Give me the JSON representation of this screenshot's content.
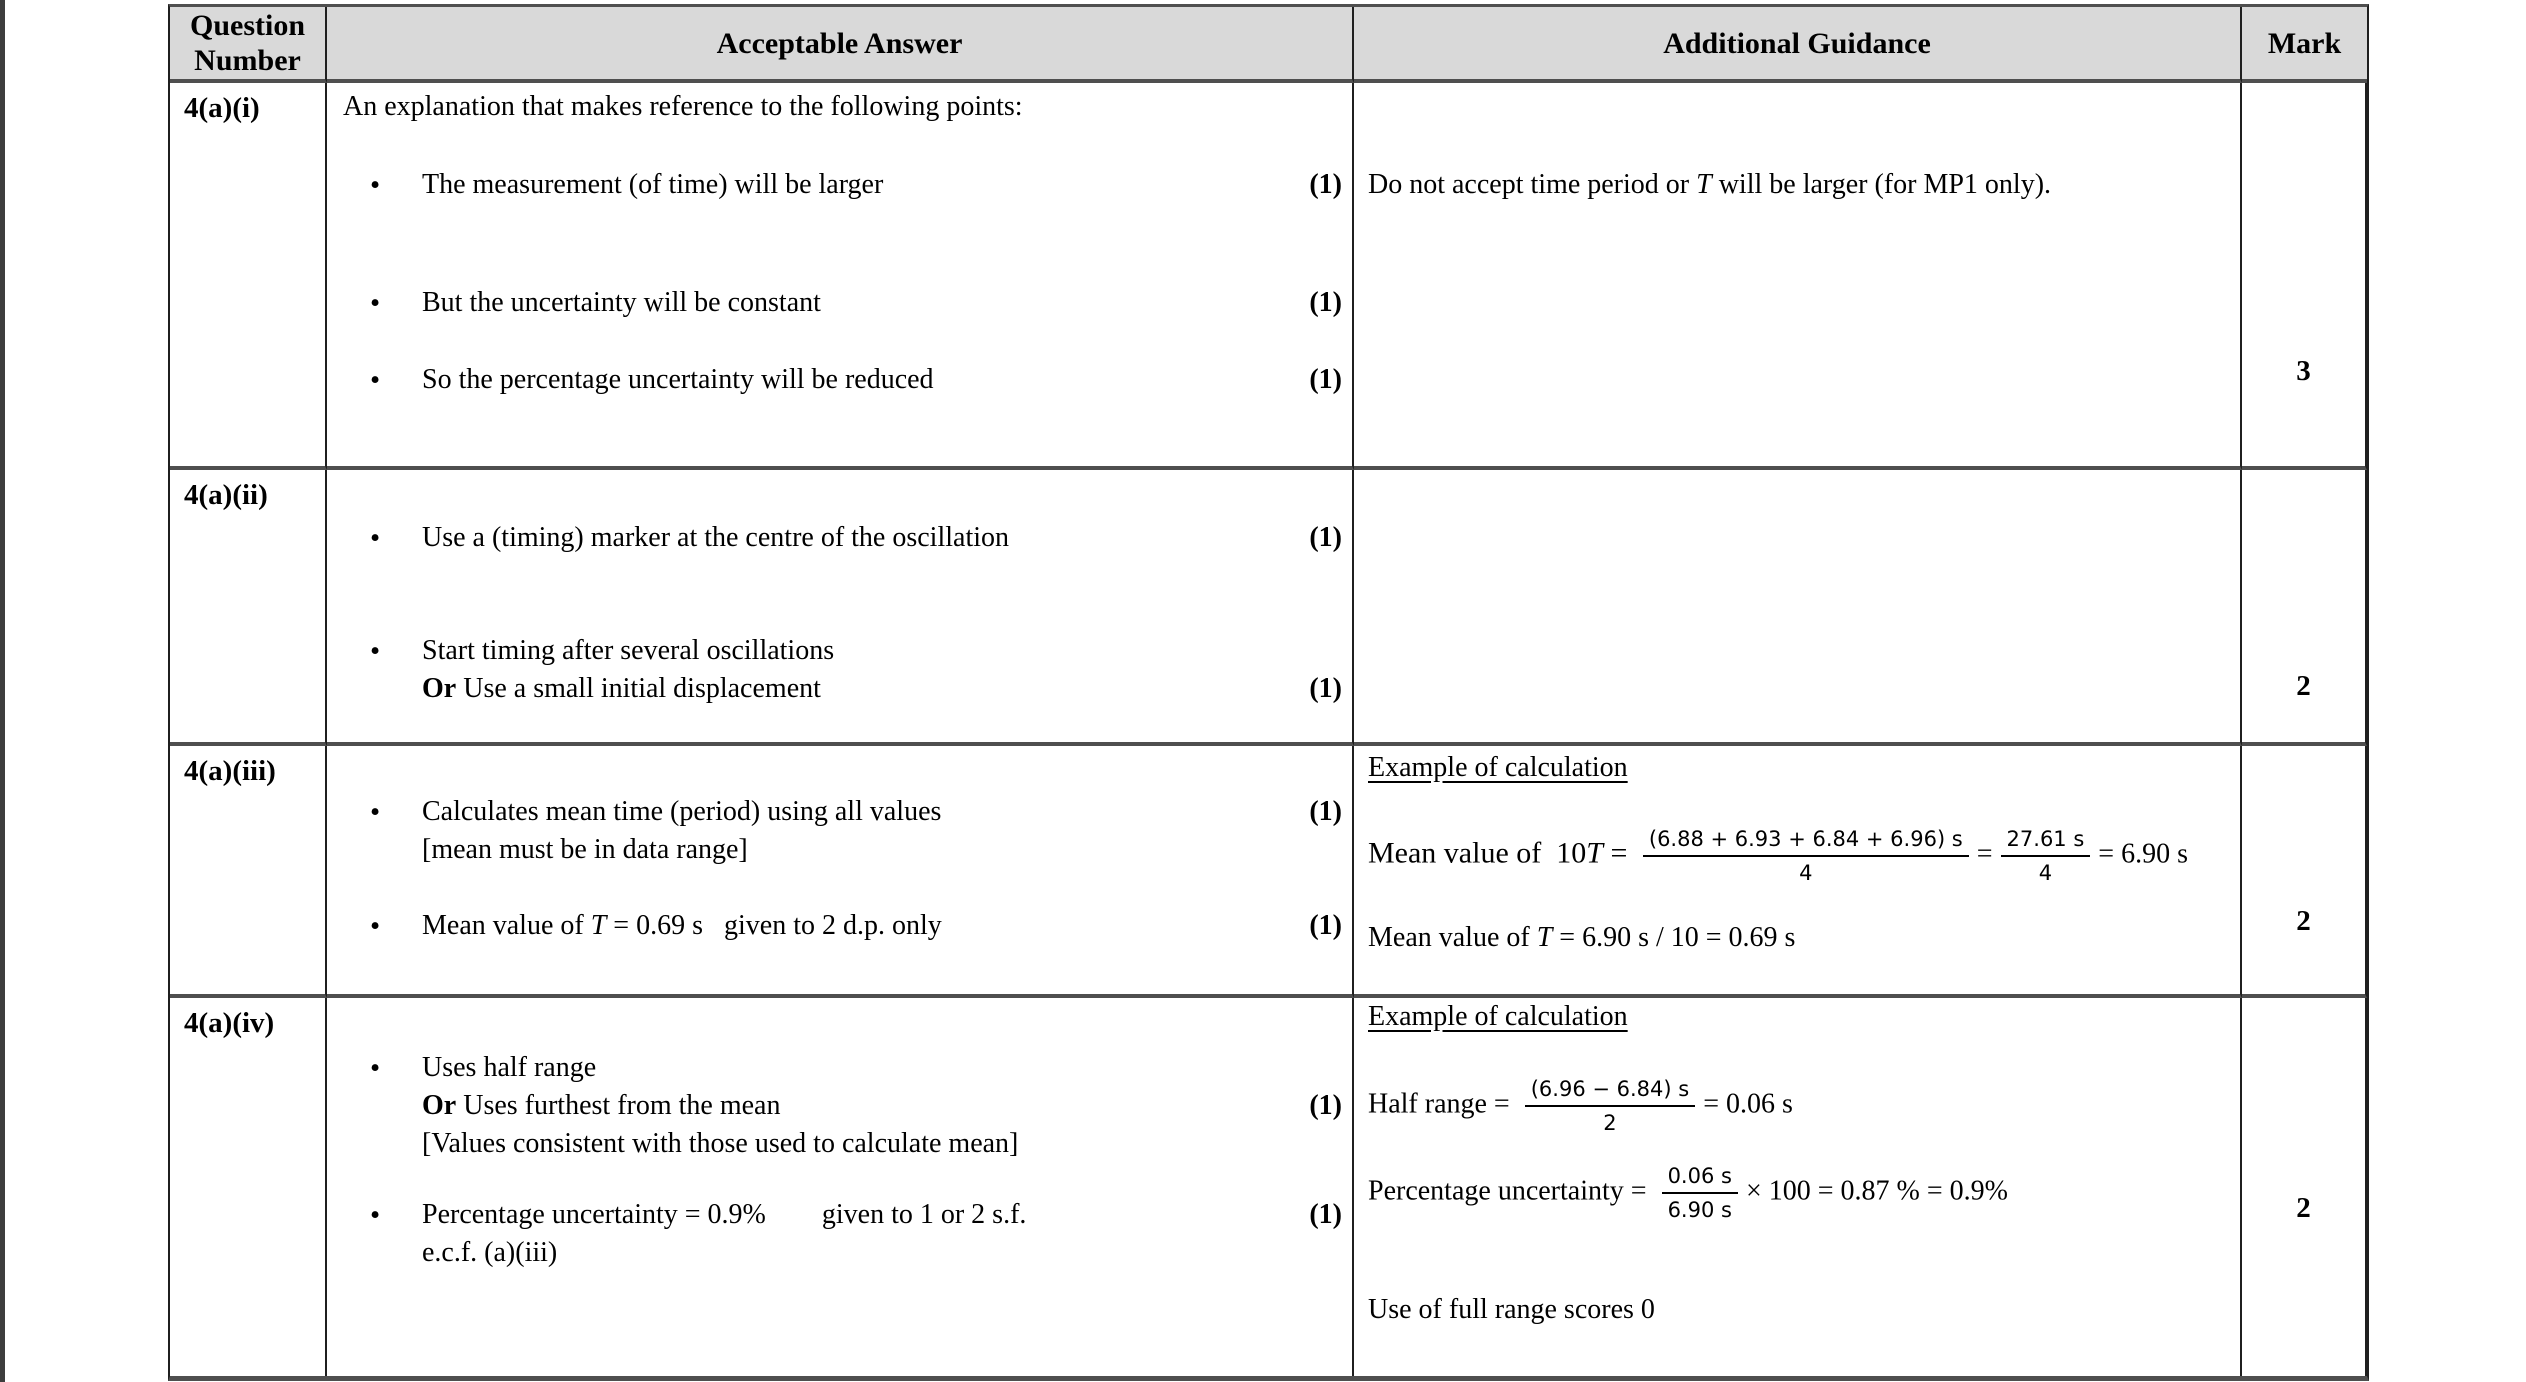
{
  "ui": {
    "bullet": "•"
  },
  "header": {
    "question_number": "Question Number",
    "acceptable_answer": "Acceptable Answer",
    "additional_guidance": "Additional Guidance",
    "mark": "Mark"
  },
  "rows": [
    {
      "question": "4(a)(i)",
      "intro": "An explanation that makes reference to the following points:",
      "bullets": [
        {
          "line1": "The measurement (of time) will be larger",
          "mark": "(1)"
        },
        {
          "line1": "But the uncertainty will be constant",
          "mark": "(1)"
        },
        {
          "line1": "So the percentage uncertainty will be reduced",
          "mark": "(1)"
        }
      ],
      "guidance": {
        "pre": "Do not accept time period or ",
        "var": "T",
        "post": " will be larger (for MP1 only)."
      },
      "mark": "3"
    },
    {
      "question": "4(a)(ii)",
      "bullets": [
        {
          "line1": "Use a (timing) marker at the centre of the oscillation",
          "mark": "(1)"
        },
        {
          "line1": "Start timing after several oscillations",
          "line2_bold": "Or",
          "line2": " Use a small initial displacement",
          "mark": "(1)"
        }
      ],
      "mark": "2"
    },
    {
      "question": "4(a)(iii)",
      "bullets": [
        {
          "line1": "Calculates mean time (period) using all values",
          "line2": "[mean must be in data range]",
          "mark": "(1)"
        },
        {
          "pre": "Mean value of ",
          "var": "T",
          "rest": " = 0.69 s   given to 2 d.p. only",
          "mark": "(1)"
        }
      ],
      "guidance": {
        "heading": "Example of calculation",
        "f1_pre": "Mean value of  10",
        "f1_var": "T",
        "f1_eq": " = ",
        "f1_num": "(6.88 + 6.93 + 6.84 + 6.96) s",
        "f1_den": "4",
        "f1_eq2": "=",
        "f1_num2": "27.61 s",
        "f1_den2": "4",
        "f1_result": "= 6.90 s",
        "l2_pre": "Mean value of ",
        "l2_var": "T",
        "l2_rest": " = 6.90 s / 10 = 0.69 s"
      },
      "mark": "2"
    },
    {
      "question": "4(a)(iv)",
      "bullets": [
        {
          "line1": "Uses half range",
          "line2_bold": "Or",
          "line2": " Uses furthest from the mean",
          "line3": "[Values consistent with those used to calculate mean]",
          "mark": "(1)"
        },
        {
          "line1": "Percentage uncertainty = 0.9%        given to 1 or 2 s.f.",
          "line2": "e.c.f. (a)(iii)",
          "mark": "(1)"
        }
      ],
      "guidance": {
        "heading": "Example of calculation",
        "f1_label": "Half range = ",
        "f1_num": "(6.96 − 6.84) s",
        "f1_den": "2",
        "f1_result": "= 0.06 s",
        "f2_label": "Percentage uncertainty = ",
        "f2_num": "0.06 s",
        "f2_den": "6.90 s",
        "f2_result": "× 100 = 0.87 % = 0.9%",
        "note": "Use of full range scores 0"
      },
      "mark": "2"
    }
  ]
}
